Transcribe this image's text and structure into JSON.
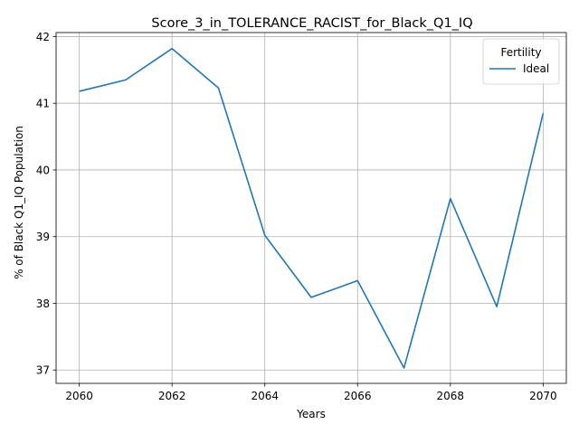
{
  "chart_data": {
    "type": "line",
    "title": "Score_3_in_TOLERANCE_RACIST_for_Black_Q1_IQ",
    "xlabel": "Years",
    "ylabel": "% of Black Q1_IQ Population",
    "x": [
      2060,
      2061,
      2062,
      2063,
      2064,
      2065,
      2066,
      2067,
      2068,
      2069,
      2070
    ],
    "series": [
      {
        "name": "Ideal",
        "color": "#1f77b4",
        "values": [
          41.18,
          41.35,
          41.82,
          41.23,
          39.02,
          38.09,
          38.34,
          37.03,
          39.57,
          37.95,
          40.85
        ]
      }
    ],
    "xticks": [
      2060,
      2062,
      2064,
      2066,
      2068,
      2070
    ],
    "yticks": [
      37,
      38,
      39,
      40,
      41,
      42
    ],
    "xlim": [
      2059.5,
      2070.5
    ],
    "ylim": [
      36.8,
      42.06
    ],
    "grid": true,
    "legend": {
      "title": "Fertility",
      "placement": "top-right"
    }
  }
}
